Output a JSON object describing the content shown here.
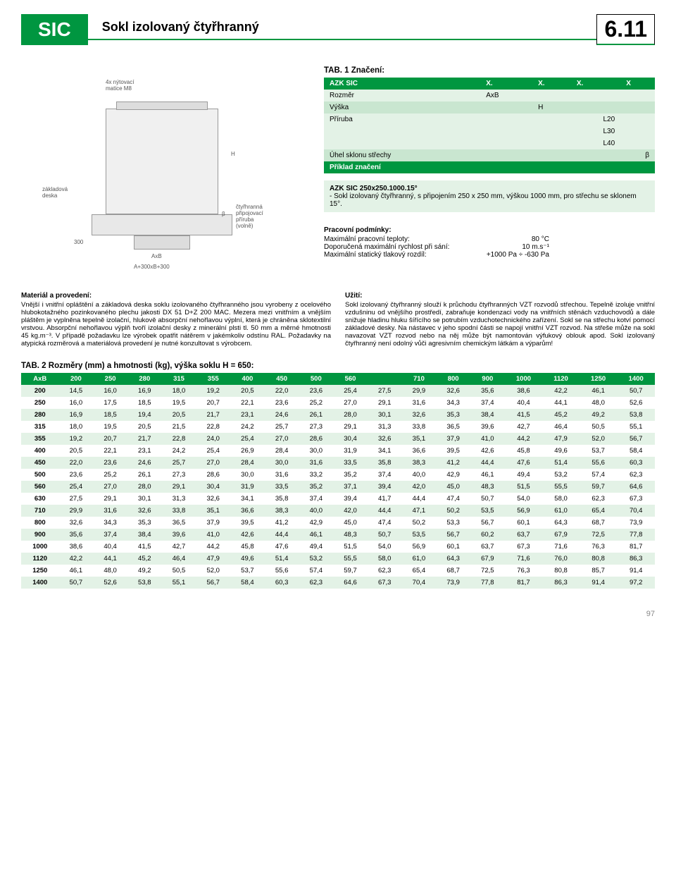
{
  "header": {
    "sic": "SIC",
    "title": "Sokl izolovaný čtyřhranný",
    "number": "6.11"
  },
  "diagram": {
    "labels": {
      "nuts": "4x nýtovací\nmatice M8",
      "base": "základová\ndeska",
      "flange": "čtyřhranná\npřipojovací\npříruba\n(volně)",
      "h": "H",
      "d300": "300",
      "axb": "AxB",
      "formula": "A+300xB+300",
      "beta": "β"
    }
  },
  "tab1": {
    "title": "TAB. 1 Značení:",
    "rows": [
      [
        "AZK SIC",
        "X.",
        "X.",
        "X.",
        "X"
      ],
      [
        "Rozměr",
        "AxB",
        "",
        "",
        ""
      ],
      [
        "Výška",
        "",
        "H",
        "",
        ""
      ],
      [
        "Příruba",
        "",
        "",
        "L20",
        ""
      ],
      [
        "",
        "",
        "",
        "L30",
        ""
      ],
      [
        "",
        "",
        "",
        "L40",
        ""
      ],
      [
        "Úhel sklonu střechy",
        "",
        "",
        "",
        "β"
      ]
    ],
    "example_header": "Příklad značení",
    "example_code": "AZK SIC 250x250.1000.15°",
    "example_text": "- Sokl izolovaný čtyřhranný, s připojením 250 x 250 mm, výškou 1000 mm, pro střechu se sklonem 15°."
  },
  "conditions": {
    "title": "Pracovní podmínky:",
    "lines": [
      [
        "Maximální pracovní teploty:",
        "80 °C"
      ],
      [
        "Doporučená maximální rychlost při sání:",
        "10 m.s⁻¹"
      ],
      [
        "Maximální statický tlakový rozdíl:",
        "+1000 Pa ÷ -630 Pa"
      ]
    ]
  },
  "material": {
    "title": "Materiál a provedení:",
    "body": "Vnější i vnitřní opláštění a základová deska soklu izolovaného čtyřhranného jsou vyrobeny z ocelového hlubokotažného pozinkovaného plechu jakosti DX 51 D+Z 200 MAC. Mezera mezi vnitřním a vnějším pláštěm je vyplněna tepelně izolační, hlukově absorpční nehořlavou výplní, která je chráněna sklotextilní vrstvou. Absorpční nehořlavou výplň tvoří izolační desky z minerální plsti tl. 50 mm a měrné hmotnosti 45 kg.m⁻³. V případě požadavku lze výrobek opatřit nátěrem v jakémkoliv odstínu RAL. Požadavky na atypická rozměrová a materiálová provedení je nutné konzultovat s výrobcem."
  },
  "usage": {
    "title": "Užití:",
    "body": "Sokl izolovaný čtyřhranný slouží k průchodu čtyřhranných VZT rozvodů střechou. Tepelně izoluje vnitřní vzdušninu od vnějšího prostředí, zabraňuje kondenzaci vody na vnitřních stěnách vzduchovodů a dále snižuje hladinu hluku šířícího se potrubím vzduchotechnického zařízení. Sokl se na střechu kotví pomocí základové desky. Na nástavec v jeho spodní části se napojí vnitřní VZT rozvod. Na střeše může na sokl navazovat VZT rozvod nebo na něj může být namontován výfukový oblouk apod. Sokl izolovaný čtyřhranný není odolný vůči agresivním chemickým látkám a výparům!"
  },
  "tab2": {
    "title": "TAB. 2 Rozměry (mm) a hmotnosti (kg), výška soklu H = 650:",
    "columns": [
      "AxB",
      "200",
      "250",
      "280",
      "315",
      "355",
      "400",
      "450",
      "500",
      "560",
      "",
      "710",
      "800",
      "900",
      "1000",
      "1120",
      "1250",
      "1400"
    ],
    "rows": [
      [
        "200",
        "14,5",
        "16,0",
        "16,9",
        "18,0",
        "19,2",
        "20,5",
        "22,0",
        "23,6",
        "25,4",
        "27,5",
        "29,9",
        "32,6",
        "35,6",
        "38,6",
        "42,2",
        "46,1",
        "50,7"
      ],
      [
        "250",
        "16,0",
        "17,5",
        "18,5",
        "19,5",
        "20,7",
        "22,1",
        "23,6",
        "25,2",
        "27,0",
        "29,1",
        "31,6",
        "34,3",
        "37,4",
        "40,4",
        "44,1",
        "48,0",
        "52,6"
      ],
      [
        "280",
        "16,9",
        "18,5",
        "19,4",
        "20,5",
        "21,7",
        "23,1",
        "24,6",
        "26,1",
        "28,0",
        "30,1",
        "32,6",
        "35,3",
        "38,4",
        "41,5",
        "45,2",
        "49,2",
        "53,8"
      ],
      [
        "315",
        "18,0",
        "19,5",
        "20,5",
        "21,5",
        "22,8",
        "24,2",
        "25,7",
        "27,3",
        "29,1",
        "31,3",
        "33,8",
        "36,5",
        "39,6",
        "42,7",
        "46,4",
        "50,5",
        "55,1"
      ],
      [
        "355",
        "19,2",
        "20,7",
        "21,7",
        "22,8",
        "24,0",
        "25,4",
        "27,0",
        "28,6",
        "30,4",
        "32,6",
        "35,1",
        "37,9",
        "41,0",
        "44,2",
        "47,9",
        "52,0",
        "56,7"
      ],
      [
        "400",
        "20,5",
        "22,1",
        "23,1",
        "24,2",
        "25,4",
        "26,9",
        "28,4",
        "30,0",
        "31,9",
        "34,1",
        "36,6",
        "39,5",
        "42,6",
        "45,8",
        "49,6",
        "53,7",
        "58,4"
      ],
      [
        "450",
        "22,0",
        "23,6",
        "24,6",
        "25,7",
        "27,0",
        "28,4",
        "30,0",
        "31,6",
        "33,5",
        "35,8",
        "38,3",
        "41,2",
        "44,4",
        "47,6",
        "51,4",
        "55,6",
        "60,3"
      ],
      [
        "500",
        "23,6",
        "25,2",
        "26,1",
        "27,3",
        "28,6",
        "30,0",
        "31,6",
        "33,2",
        "35,2",
        "37,4",
        "40,0",
        "42,9",
        "46,1",
        "49,4",
        "53,2",
        "57,4",
        "62,3"
      ],
      [
        "560",
        "25,4",
        "27,0",
        "28,0",
        "29,1",
        "30,4",
        "31,9",
        "33,5",
        "35,2",
        "37,1",
        "39,4",
        "42,0",
        "45,0",
        "48,3",
        "51,5",
        "55,5",
        "59,7",
        "64,6"
      ],
      [
        "630",
        "27,5",
        "29,1",
        "30,1",
        "31,3",
        "32,6",
        "34,1",
        "35,8",
        "37,4",
        "39,4",
        "41,7",
        "44,4",
        "47,4",
        "50,7",
        "54,0",
        "58,0",
        "62,3",
        "67,3"
      ],
      [
        "710",
        "29,9",
        "31,6",
        "32,6",
        "33,8",
        "35,1",
        "36,6",
        "38,3",
        "40,0",
        "42,0",
        "44,4",
        "47,1",
        "50,2",
        "53,5",
        "56,9",
        "61,0",
        "65,4",
        "70,4"
      ],
      [
        "800",
        "32,6",
        "34,3",
        "35,3",
        "36,5",
        "37,9",
        "39,5",
        "41,2",
        "42,9",
        "45,0",
        "47,4",
        "50,2",
        "53,3",
        "56,7",
        "60,1",
        "64,3",
        "68,7",
        "73,9"
      ],
      [
        "900",
        "35,6",
        "37,4",
        "38,4",
        "39,6",
        "41,0",
        "42,6",
        "44,4",
        "46,1",
        "48,3",
        "50,7",
        "53,5",
        "56,7",
        "60,2",
        "63,7",
        "67,9",
        "72,5",
        "77,8"
      ],
      [
        "1000",
        "38,6",
        "40,4",
        "41,5",
        "42,7",
        "44,2",
        "45,8",
        "47,6",
        "49,4",
        "51,5",
        "54,0",
        "56,9",
        "60,1",
        "63,7",
        "67,3",
        "71,6",
        "76,3",
        "81,7"
      ],
      [
        "1120",
        "42,2",
        "44,1",
        "45,2",
        "46,4",
        "47,9",
        "49,6",
        "51,4",
        "53,2",
        "55,5",
        "58,0",
        "61,0",
        "64,3",
        "67,9",
        "71,6",
        "76,0",
        "80,8",
        "86,3"
      ],
      [
        "1250",
        "46,1",
        "48,0",
        "49,2",
        "50,5",
        "52,0",
        "53,7",
        "55,6",
        "57,4",
        "59,7",
        "62,3",
        "65,4",
        "68,7",
        "72,5",
        "76,3",
        "80,8",
        "85,7",
        "91,4"
      ],
      [
        "1400",
        "50,7",
        "52,6",
        "53,8",
        "55,1",
        "56,7",
        "58,4",
        "60,3",
        "62,3",
        "64,6",
        "67,3",
        "70,4",
        "73,9",
        "77,8",
        "81,7",
        "86,3",
        "91,4",
        "97,2"
      ]
    ]
  },
  "footer": {
    "page": "97"
  },
  "colors": {
    "brand": "#009640",
    "lite": "#e3f2e6",
    "lite2": "#c9e6d0"
  }
}
